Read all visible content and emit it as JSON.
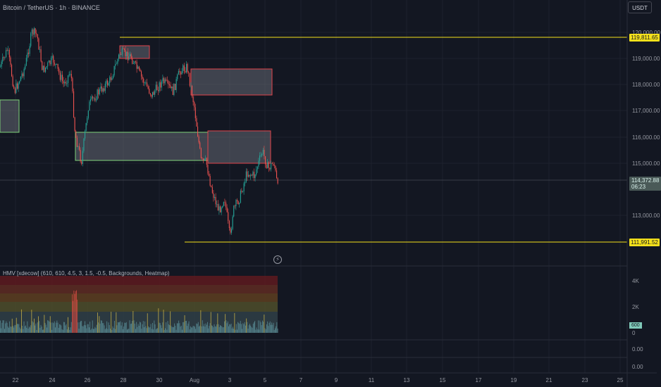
{
  "header": {
    "symbol_title": "Bitcoin / TetherUS · 1h · BINANCE",
    "currency": "USDT"
  },
  "colors": {
    "background": "#131722",
    "candle_up": "#26a69a",
    "candle_down": "#ef5350",
    "level_line": "#f5e11b",
    "zone_bull_border": "#7fd37a",
    "zone_bear_border": "#e0434a"
  },
  "price_axis": {
    "labels": [
      "120,000.00",
      "119,000.00",
      "118,000.00",
      "117,000.00",
      "116,000.00",
      "115,000.00",
      "113,000.00"
    ],
    "level_high": "119,811.65",
    "level_low": "111,991.52",
    "current_price": "114,372.88",
    "countdown": "06:23"
  },
  "indicator": {
    "title": "HMV [xdecow] (610, 610, 4.5, 3, 1.5, -0.5, Backgrounds, Heatmap)",
    "axis_labels": [
      "4K",
      "2K",
      "0"
    ],
    "current_value": "600",
    "lower_axis_labels": [
      "0.00",
      "0.00"
    ]
  },
  "time_axis": {
    "labels": [
      "22",
      "24",
      "26",
      "28",
      "30",
      "Aug",
      "3",
      "5",
      "7",
      "9",
      "11",
      "13",
      "15",
      "17",
      "19",
      "21",
      "23",
      "25"
    ]
  },
  "icons": {
    "replay": "bolt-icon"
  }
}
